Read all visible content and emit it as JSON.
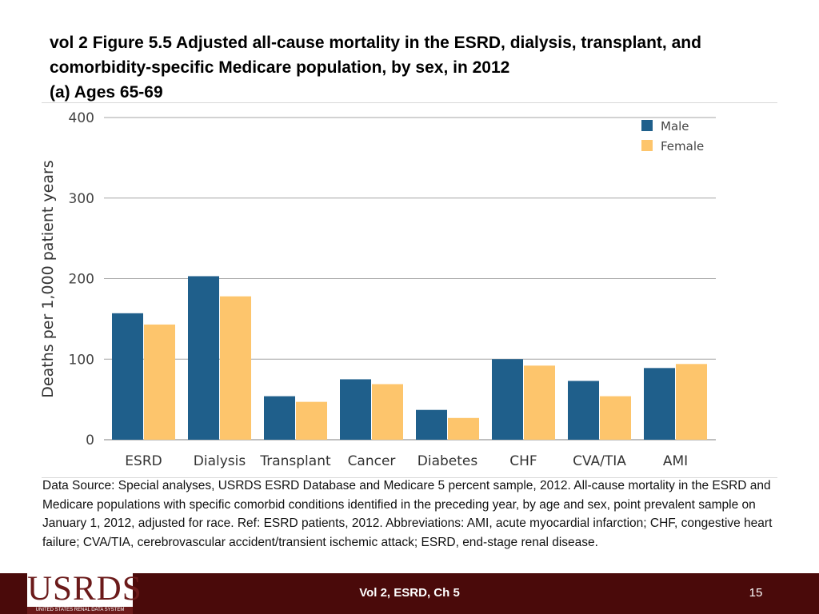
{
  "header": {
    "title_line1": "vol 2  Figure 5.5 Adjusted all-cause mortality in the ESRD, dialysis, transplant, and",
    "title_line2": "comorbidity-specific Medicare population, by sex, in 2012",
    "title_line3": "(a) Ages 65-69"
  },
  "colors": {
    "male": "#1f5f8b",
    "female": "#fdc56c",
    "grid": "#a6a6a6",
    "footer_bg": "#4a0a0a"
  },
  "chart_data": {
    "type": "bar",
    "title": "(a) Ages 65-69",
    "xlabel": "",
    "ylabel": "Deaths per 1,000 patient years",
    "ylim": [
      0,
      400
    ],
    "yticks": [
      0,
      100,
      200,
      300,
      400
    ],
    "grid": true,
    "legend_position": "top-right",
    "categories": [
      "ESRD",
      "Dialysis",
      "Transplant",
      "Cancer",
      "Diabetes",
      "CHF",
      "CVA/TIA",
      "AMI"
    ],
    "series": [
      {
        "name": "Male",
        "values": [
          157,
          203,
          54,
          75,
          37,
          100,
          73,
          89
        ]
      },
      {
        "name": "Female",
        "values": [
          143,
          178,
          47,
          69,
          27,
          92,
          54,
          94
        ]
      }
    ]
  },
  "source_text": "Data Source: Special analyses, USRDS ESRD Database and Medicare 5 percent sample, 2012. All-cause mortality in the ESRD and Medicare populations with specific comorbid conditions identified in the preceding year, by age and sex, point prevalent sample on January 1, 2012, adjusted for race. Ref: ESRD patients, 2012. Abbreviations: AMI, acute myocardial infarction; CHF, congestive heart failure; CVA/TIA, cerebrovascular accident/transient ischemic attack; ESRD, end-stage renal disease.",
  "footer": {
    "logo_text": "USRDS",
    "logo_subtext": "UNITED STATES RENAL DATA SYSTEM",
    "center_label": "Vol 2, ESRD, Ch 5",
    "page_number": "15"
  }
}
